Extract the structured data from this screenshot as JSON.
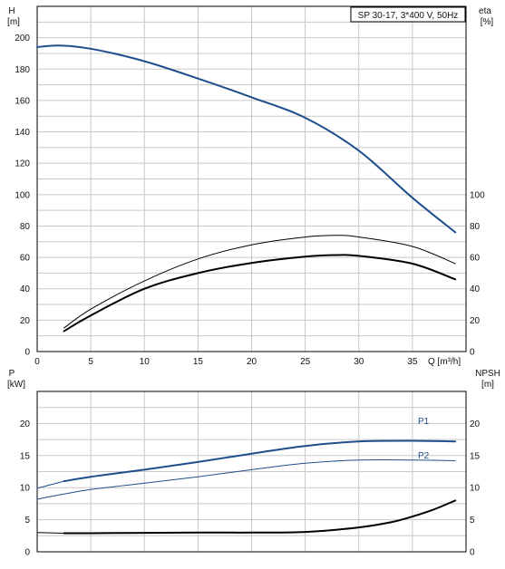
{
  "title": "SP 30-17, 3*400 V, 50Hz",
  "colors": {
    "grid": "#c8c8c8",
    "axis": "#000000",
    "text": "#111111",
    "blue": "#1f4e8c",
    "black": "#000000",
    "background": "#ffffff"
  },
  "chart_data": [
    {
      "type": "line",
      "name": "head-efficiency",
      "x_axis": {
        "label": "Q [m³/h]",
        "range": [
          0,
          40
        ],
        "ticks": [
          0,
          5,
          10,
          15,
          20,
          25,
          30,
          35
        ]
      },
      "left_axis": {
        "label_top": "H",
        "label_unit": "[m]",
        "range": [
          0,
          220
        ],
        "ticks": [
          0,
          20,
          40,
          60,
          80,
          100,
          120,
          140,
          160,
          180,
          200
        ]
      },
      "right_axis": {
        "label_top": "eta",
        "label_unit": "[%]",
        "range": [
          0,
          220
        ],
        "ticks": [
          0,
          20,
          40,
          60,
          80,
          100
        ]
      },
      "grid": true,
      "series": [
        {
          "key": "H",
          "color": "#1f4e8c",
          "width": 2,
          "x": [
            0,
            2,
            5,
            10,
            15,
            20,
            25,
            30,
            35,
            39
          ],
          "y": [
            194,
            195,
            193,
            185,
            174,
            162,
            149,
            128,
            98,
            76
          ]
        },
        {
          "key": "eta-pump",
          "color": "#000000",
          "width": 1,
          "x": [
            2.5,
            5,
            10,
            15,
            20,
            25,
            28,
            30,
            35,
            39
          ],
          "y": [
            15,
            27,
            45,
            59,
            68,
            73,
            74,
            73,
            67,
            56
          ]
        },
        {
          "key": "eta-total",
          "color": "#000000",
          "width": 2,
          "x": [
            2.5,
            5,
            10,
            15,
            20,
            25,
            28,
            30,
            35,
            39
          ],
          "y": [
            13,
            23,
            40,
            50,
            56.5,
            60.5,
            61.5,
            61,
            56,
            46
          ]
        }
      ]
    },
    {
      "type": "line",
      "name": "power-npsh",
      "x_axis": {
        "label": "",
        "range": [
          0,
          40
        ],
        "ticks": []
      },
      "left_axis": {
        "label_top": "P",
        "label_unit": "[kW]",
        "range": [
          0,
          25
        ],
        "ticks": [
          0,
          5,
          10,
          15,
          20
        ]
      },
      "right_axis": {
        "label_top": "NPSH",
        "label_unit": "[m]",
        "range": [
          0,
          25
        ],
        "ticks": [
          0,
          5,
          10,
          15,
          20
        ]
      },
      "grid": true,
      "series": [
        {
          "key": "P1",
          "name": "P1",
          "color": "#1f4e8c",
          "width": 2,
          "x": [
            2.5,
            5,
            10,
            15,
            20,
            25,
            30,
            35,
            39
          ],
          "y": [
            11,
            11.7,
            12.8,
            14,
            15.3,
            16.5,
            17.2,
            17.3,
            17.2
          ]
        },
        {
          "key": "P1-extrapolated",
          "color": "#1f4e8c",
          "width": 1,
          "x": [
            0,
            2.5
          ],
          "y": [
            9.9,
            11
          ]
        },
        {
          "key": "P2",
          "name": "P2",
          "color": "#1f4e8c",
          "width": 1,
          "x": [
            0,
            2.5,
            5,
            10,
            15,
            20,
            25,
            30,
            35,
            39
          ],
          "y": [
            8.2,
            9,
            9.7,
            10.7,
            11.7,
            12.8,
            13.8,
            14.3,
            14.3,
            14.2
          ]
        },
        {
          "key": "NPSH",
          "color": "#000000",
          "width": 2,
          "x": [
            2.5,
            5,
            10,
            15,
            20,
            25,
            30,
            33,
            35,
            37,
            39
          ],
          "y": [
            2.9,
            2.9,
            2.95,
            3.0,
            3.0,
            3.1,
            3.8,
            4.6,
            5.5,
            6.6,
            8.0
          ]
        },
        {
          "key": "NPSH-extrapolated",
          "color": "#000000",
          "width": 1,
          "x": [
            0,
            2.5
          ],
          "y": [
            3.0,
            2.9
          ]
        }
      ]
    }
  ]
}
